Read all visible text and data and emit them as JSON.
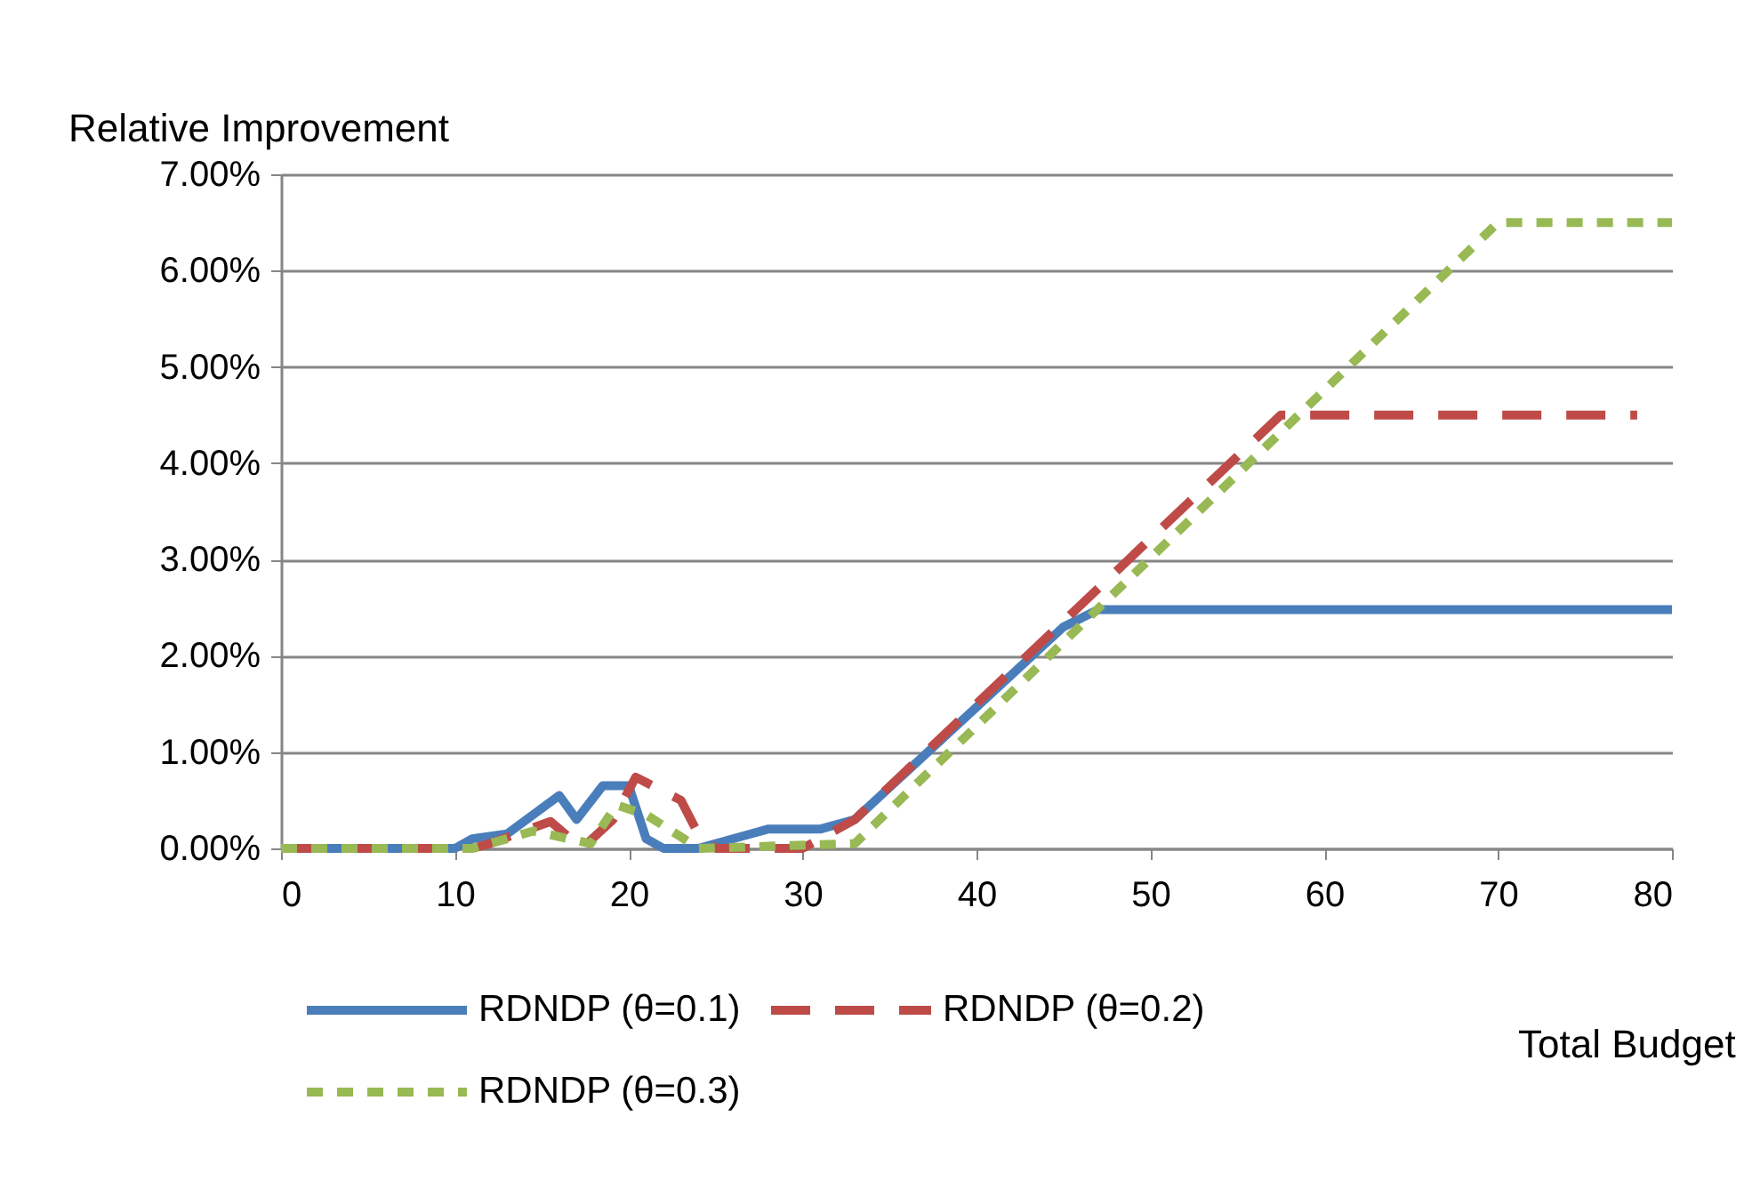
{
  "chart_data": {
    "type": "line",
    "ylabel": "Relative Improvement",
    "xlabel": "Total Budget",
    "xlim": [
      0,
      80
    ],
    "xticks": [
      0,
      10,
      20,
      30,
      40,
      50,
      60,
      70,
      80
    ],
    "ylim": [
      0,
      7
    ],
    "yticks": [
      {
        "value": 0,
        "label": "0.00%"
      },
      {
        "value": 1,
        "label": "1.00%"
      },
      {
        "value": 2,
        "label": "2.00%"
      },
      {
        "value": 3,
        "label": "3.00%"
      },
      {
        "value": 4,
        "label": "4.00%"
      },
      {
        "value": 5,
        "label": "5.00%"
      },
      {
        "value": 6,
        "label": "6.00%"
      },
      {
        "value": 7,
        "label": "7.00%"
      }
    ],
    "grid": "y",
    "legend": "bottom",
    "marker": "none",
    "series": [
      {
        "name": "RDNDP (θ=0.1)",
        "color": "#4a7ebb",
        "line_style": "solid",
        "x": [
          0,
          10,
          11,
          13,
          16,
          17,
          18.5,
          20,
          21,
          22,
          24,
          27,
          28,
          31,
          33,
          45,
          47,
          80
        ],
        "values": [
          0,
          0,
          0.1,
          0.15,
          0.55,
          0.3,
          0.65,
          0.65,
          0.1,
          0,
          0,
          0.15,
          0.2,
          0.2,
          0.3,
          2.3,
          2.48,
          2.48
        ]
      },
      {
        "name": "RDNDP (θ=0.2)",
        "color": "#be4b48",
        "line_style": "dashed",
        "x": [
          0,
          11,
          12,
          15.5,
          17.3,
          19.1,
          20.4,
          23,
          24,
          25,
          30,
          31,
          33,
          57.5,
          78
        ],
        "values": [
          0,
          0,
          0.05,
          0.28,
          0,
          0.3,
          0.74,
          0.5,
          0.15,
          0,
          0,
          0.1,
          0.3,
          4.5,
          4.5
        ]
      },
      {
        "name": "RDNDP (θ=0.3)",
        "color": "#98b954",
        "line_style": "dotted",
        "x": [
          0,
          11,
          13,
          14.5,
          17.8,
          19.3,
          21,
          23,
          24,
          33,
          70,
          80
        ],
        "values": [
          0,
          0,
          0.1,
          0.18,
          0.05,
          0.45,
          0.35,
          0.12,
          0,
          0.05,
          6.5,
          6.5
        ]
      }
    ]
  }
}
